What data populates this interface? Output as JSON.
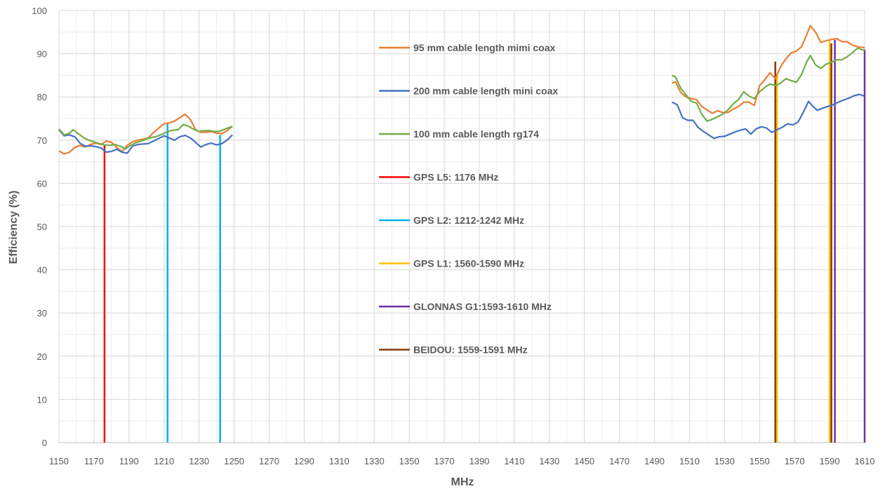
{
  "chart_data": {
    "type": "line",
    "title": "",
    "xlabel": "MHz",
    "ylabel": "Efficiency (%)",
    "xlim": [
      1150,
      1610
    ],
    "ylim": [
      0,
      100
    ],
    "x_ticks": [
      1150,
      1170,
      1190,
      1210,
      1230,
      1250,
      1270,
      1290,
      1310,
      1330,
      1350,
      1370,
      1390,
      1410,
      1430,
      1450,
      1470,
      1490,
      1510,
      1530,
      1550,
      1570,
      1590,
      1610
    ],
    "y_ticks": [
      0,
      10,
      20,
      30,
      40,
      50,
      60,
      70,
      80,
      90,
      100
    ],
    "grid": true,
    "legend_position": "center",
    "series": [
      {
        "name": "95 mm cable length mimi coax",
        "color": "#ED7D31",
        "segments": [
          [
            [
              1150,
              67.5
            ],
            [
              1153,
              66.8
            ],
            [
              1156,
              67.2
            ],
            [
              1159,
              68.3
            ],
            [
              1162,
              68.8
            ],
            [
              1165,
              68.4
            ],
            [
              1168,
              69.0
            ],
            [
              1171,
              69.3
            ],
            [
              1174,
              69.0
            ],
            [
              1177,
              69.8
            ],
            [
              1180,
              69.5
            ],
            [
              1183,
              68.3
            ],
            [
              1186,
              67.3
            ],
            [
              1189,
              68.8
            ],
            [
              1192,
              69.6
            ],
            [
              1195,
              70.0
            ],
            [
              1198,
              70.2
            ],
            [
              1201,
              70.5
            ],
            [
              1204,
              71.8
            ],
            [
              1207,
              72.8
            ],
            [
              1210,
              73.8
            ],
            [
              1213,
              74.0
            ],
            [
              1216,
              74.4
            ],
            [
              1219,
              75.2
            ],
            [
              1222,
              76.0
            ],
            [
              1225,
              74.8
            ],
            [
              1228,
              72.4
            ],
            [
              1231,
              71.8
            ],
            [
              1234,
              71.8
            ],
            [
              1237,
              72.0
            ],
            [
              1240,
              71.6
            ],
            [
              1243,
              71.5
            ],
            [
              1246,
              72.2
            ],
            [
              1249,
              73.2
            ]
          ],
          [
            [
              1500,
              83.2
            ],
            [
              1502,
              83.5
            ],
            [
              1505,
              81.0
            ],
            [
              1508,
              80.0
            ],
            [
              1511,
              79.6
            ],
            [
              1514,
              79.4
            ],
            [
              1517,
              77.8
            ],
            [
              1520,
              77.0
            ],
            [
              1523,
              76.2
            ],
            [
              1526,
              76.8
            ],
            [
              1529,
              76.4
            ],
            [
              1532,
              76.4
            ],
            [
              1535,
              77.2
            ],
            [
              1538,
              77.8
            ],
            [
              1541,
              78.8
            ],
            [
              1544,
              78.8
            ],
            [
              1547,
              78.0
            ],
            [
              1550,
              82.6
            ],
            [
              1553,
              84.0
            ],
            [
              1556,
              85.6
            ],
            [
              1559,
              84.2
            ],
            [
              1562,
              87.0
            ],
            [
              1565,
              88.8
            ],
            [
              1568,
              90.2
            ],
            [
              1571,
              90.6
            ],
            [
              1574,
              91.6
            ],
            [
              1577,
              94.5
            ],
            [
              1579,
              96.5
            ],
            [
              1582,
              95.0
            ],
            [
              1585,
              92.6
            ],
            [
              1588,
              93.0
            ],
            [
              1591,
              93.3
            ],
            [
              1594,
              93.5
            ],
            [
              1597,
              92.8
            ],
            [
              1600,
              92.8
            ],
            [
              1603,
              92.0
            ],
            [
              1606,
              91.6
            ],
            [
              1610,
              91.4
            ]
          ]
        ]
      },
      {
        "name": "200 mm cable length mini coax",
        "color": "#4472C4",
        "segments": [
          [
            [
              1150,
              72.4
            ],
            [
              1153,
              71.0
            ],
            [
              1156,
              71.2
            ],
            [
              1159,
              70.8
            ],
            [
              1162,
              69.3
            ],
            [
              1165,
              68.6
            ],
            [
              1168,
              68.7
            ],
            [
              1171,
              68.5
            ],
            [
              1174,
              68.2
            ],
            [
              1177,
              67.2
            ],
            [
              1180,
              67.4
            ],
            [
              1183,
              67.9
            ],
            [
              1186,
              67.2
            ],
            [
              1189,
              67.0
            ],
            [
              1192,
              68.6
            ],
            [
              1195,
              69.0
            ],
            [
              1198,
              69.1
            ],
            [
              1201,
              69.2
            ],
            [
              1204,
              69.8
            ],
            [
              1207,
              70.4
            ],
            [
              1210,
              71.0
            ],
            [
              1213,
              70.5
            ],
            [
              1216,
              70.0
            ],
            [
              1219,
              70.8
            ],
            [
              1222,
              71.1
            ],
            [
              1225,
              70.5
            ],
            [
              1228,
              69.5
            ],
            [
              1231,
              68.4
            ],
            [
              1234,
              69.0
            ],
            [
              1237,
              69.3
            ],
            [
              1240,
              68.9
            ],
            [
              1243,
              69.2
            ],
            [
              1246,
              70.0
            ],
            [
              1249,
              71.2
            ]
          ],
          [
            [
              1500,
              78.8
            ],
            [
              1503,
              78.2
            ],
            [
              1506,
              75.2
            ],
            [
              1509,
              74.6
            ],
            [
              1512,
              74.6
            ],
            [
              1515,
              72.9
            ],
            [
              1518,
              72.0
            ],
            [
              1521,
              71.2
            ],
            [
              1524,
              70.4
            ],
            [
              1527,
              70.8
            ],
            [
              1530,
              70.9
            ],
            [
              1533,
              71.4
            ],
            [
              1536,
              71.9
            ],
            [
              1539,
              72.3
            ],
            [
              1542,
              72.6
            ],
            [
              1545,
              71.4
            ],
            [
              1548,
              72.6
            ],
            [
              1551,
              73.1
            ],
            [
              1554,
              72.8
            ],
            [
              1557,
              71.8
            ],
            [
              1560,
              72.4
            ],
            [
              1563,
              73.0
            ],
            [
              1566,
              73.8
            ],
            [
              1569,
              73.5
            ],
            [
              1572,
              74.2
            ],
            [
              1575,
              76.5
            ],
            [
              1578,
              79.0
            ],
            [
              1580,
              78.0
            ],
            [
              1583,
              76.9
            ],
            [
              1586,
              77.4
            ],
            [
              1589,
              77.8
            ],
            [
              1592,
              78.2
            ],
            [
              1595,
              78.8
            ],
            [
              1598,
              79.3
            ],
            [
              1601,
              79.7
            ],
            [
              1604,
              80.3
            ],
            [
              1607,
              80.6
            ],
            [
              1610,
              80.2
            ]
          ]
        ]
      },
      {
        "name": "100 mm cable length rg174",
        "color": "#70AD47",
        "segments": [
          [
            [
              1150,
              72.6
            ],
            [
              1153,
              71.2
            ],
            [
              1156,
              71.6
            ],
            [
              1158,
              72.4
            ],
            [
              1161,
              71.5
            ],
            [
              1164,
              70.6
            ],
            [
              1167,
              70.0
            ],
            [
              1170,
              69.6
            ],
            [
              1173,
              69.2
            ],
            [
              1176,
              68.9
            ],
            [
              1179,
              68.8
            ],
            [
              1182,
              69.0
            ],
            [
              1185,
              68.6
            ],
            [
              1188,
              68.0
            ],
            [
              1191,
              68.8
            ],
            [
              1194,
              69.4
            ],
            [
              1197,
              69.8
            ],
            [
              1200,
              70.3
            ],
            [
              1203,
              70.6
            ],
            [
              1206,
              70.9
            ],
            [
              1209,
              71.4
            ],
            [
              1212,
              72.0
            ],
            [
              1215,
              72.3
            ],
            [
              1218,
              72.4
            ],
            [
              1221,
              73.6
            ],
            [
              1224,
              73.2
            ],
            [
              1227,
              72.5
            ],
            [
              1230,
              72.0
            ],
            [
              1233,
              72.2
            ],
            [
              1236,
              72.2
            ],
            [
              1239,
              72.0
            ],
            [
              1242,
              72.1
            ],
            [
              1245,
              72.6
            ],
            [
              1249,
              73.2
            ]
          ],
          [
            [
              1500,
              85.0
            ],
            [
              1502,
              84.6
            ],
            [
              1505,
              82.0
            ],
            [
              1508,
              80.5
            ],
            [
              1511,
              79.0
            ],
            [
              1514,
              78.6
            ],
            [
              1517,
              76.0
            ],
            [
              1520,
              74.4
            ],
            [
              1523,
              74.8
            ],
            [
              1526,
              75.4
            ],
            [
              1529,
              76.0
            ],
            [
              1532,
              77.0
            ],
            [
              1535,
              78.4
            ],
            [
              1538,
              79.4
            ],
            [
              1541,
              81.2
            ],
            [
              1544,
              80.2
            ],
            [
              1547,
              79.6
            ],
            [
              1550,
              81.2
            ],
            [
              1553,
              82.2
            ],
            [
              1556,
              83.0
            ],
            [
              1559,
              82.6
            ],
            [
              1562,
              83.2
            ],
            [
              1565,
              84.2
            ],
            [
              1568,
              83.8
            ],
            [
              1571,
              83.4
            ],
            [
              1574,
              85.2
            ],
            [
              1577,
              88.2
            ],
            [
              1579,
              89.6
            ],
            [
              1582,
              87.4
            ],
            [
              1585,
              86.6
            ],
            [
              1588,
              87.6
            ],
            [
              1591,
              88.0
            ],
            [
              1594,
              88.6
            ],
            [
              1597,
              88.6
            ],
            [
              1600,
              89.3
            ],
            [
              1603,
              90.2
            ],
            [
              1606,
              91.3
            ],
            [
              1610,
              90.7
            ]
          ]
        ]
      },
      {
        "name": "GPS L5: 1176 MHz",
        "color": "#FF0000",
        "bands": [
          [
            1176,
            68.9
          ]
        ]
      },
      {
        "name": "GPS L2: 1212-1242 MHz",
        "color": "#00B0F0",
        "bands": [
          [
            1212,
            73.8
          ],
          [
            1242,
            71.2
          ]
        ]
      },
      {
        "name": "GPS L1: 1560-1590 MHz",
        "color": "#FFC000",
        "bands": [
          [
            1560,
            85.2
          ],
          [
            1590,
            93.0
          ]
        ]
      },
      {
        "name": "GLONNAS G1:1593-1610 MHz",
        "color": "#7030A0",
        "bands": [
          [
            1593,
            93.2
          ],
          [
            1610,
            91.0
          ]
        ]
      },
      {
        "name": "BEIDOU: 1559-1591 MHz",
        "color": "#843C0C",
        "bands": [
          [
            1559,
            88.2
          ],
          [
            1591,
            92.4
          ]
        ]
      }
    ]
  }
}
